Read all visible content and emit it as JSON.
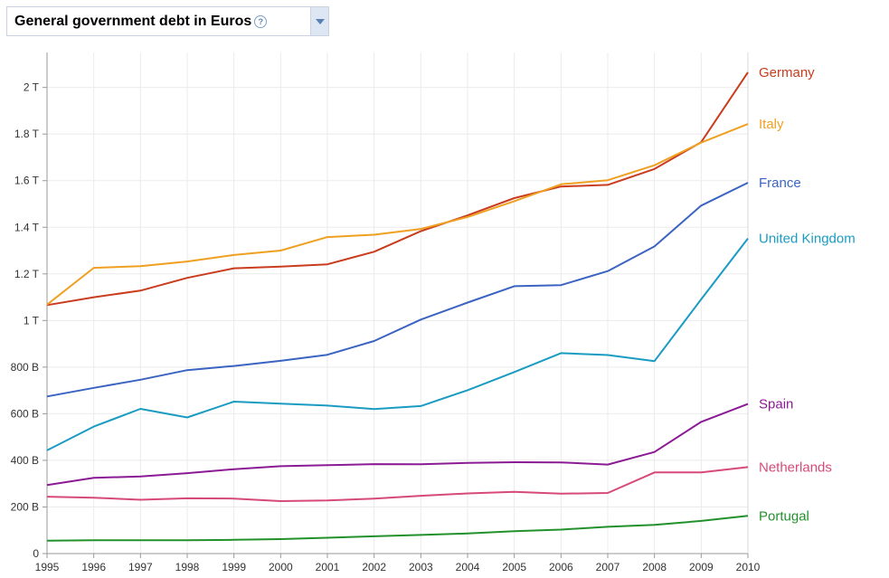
{
  "header": {
    "title": "General government debt in Euros"
  },
  "chart_data": {
    "type": "line",
    "x": [
      1995,
      1996,
      1997,
      1998,
      1999,
      2000,
      2001,
      2002,
      2003,
      2004,
      2005,
      2006,
      2007,
      2008,
      2009,
      2010
    ],
    "xlim": [
      1995,
      2010
    ],
    "ylim": [
      0,
      2150
    ],
    "y_unit": "billions of euros",
    "y_ticks": [
      {
        "value": 0,
        "label": "0"
      },
      {
        "value": 200,
        "label": "200 B"
      },
      {
        "value": 400,
        "label": "400 B"
      },
      {
        "value": 600,
        "label": "600 B"
      },
      {
        "value": 800,
        "label": "800 B"
      },
      {
        "value": 1000,
        "label": "1 T"
      },
      {
        "value": 1200,
        "label": "1.2 T"
      },
      {
        "value": 1400,
        "label": "1.4 T"
      },
      {
        "value": 1600,
        "label": "1.6 T"
      },
      {
        "value": 1800,
        "label": "1.8 T"
      },
      {
        "value": 2000,
        "label": "2 T"
      }
    ],
    "x_tick_labels": [
      "1995",
      "1996",
      "1997",
      "1998",
      "1999",
      "2000",
      "2001",
      "2002",
      "2003",
      "2004",
      "2005",
      "2006",
      "2007",
      "2008",
      "2009",
      "2010"
    ],
    "grid": true,
    "legend": "end-of-line labels",
    "series": [
      {
        "name": "Germany",
        "color": "#c93c1e",
        "values": [
          1066,
          1100,
          1128,
          1183,
          1224,
          1231,
          1241,
          1295,
          1383,
          1451,
          1525,
          1575,
          1582,
          1650,
          1765,
          2065
        ]
      },
      {
        "name": "Italy",
        "color": "#efa021",
        "values": [
          1068,
          1226,
          1233,
          1253,
          1281,
          1300,
          1358,
          1368,
          1393,
          1444,
          1512,
          1584,
          1602,
          1666,
          1763,
          1843
        ]
      },
      {
        "name": "France",
        "color": "#3b64c2",
        "values": [
          674,
          711,
          746,
          787,
          805,
          827,
          853,
          912,
          1004,
          1077,
          1147,
          1152,
          1212,
          1318,
          1493,
          1591
        ]
      },
      {
        "name": "United Kingdom",
        "color": "#1a9cc2",
        "values": [
          443,
          545,
          621,
          584,
          652,
          643,
          635,
          620,
          633,
          701,
          779,
          860,
          852,
          826,
          1091,
          1352
        ]
      },
      {
        "name": "Spain",
        "color": "#8b1b94",
        "values": [
          294,
          325,
          331,
          345,
          362,
          375,
          379,
          384,
          383,
          389,
          392,
          391,
          382,
          436,
          565,
          642
        ]
      },
      {
        "name": "Netherlands",
        "color": "#d6497a",
        "values": [
          244,
          240,
          231,
          237,
          236,
          225,
          228,
          236,
          248,
          258,
          265,
          257,
          260,
          348,
          348,
          371
        ]
      },
      {
        "name": "Portugal",
        "color": "#22912b",
        "values": [
          55,
          57,
          57,
          57,
          59,
          62,
          68,
          74,
          80,
          86,
          96,
          103,
          115,
          123,
          140,
          162
        ]
      }
    ]
  }
}
